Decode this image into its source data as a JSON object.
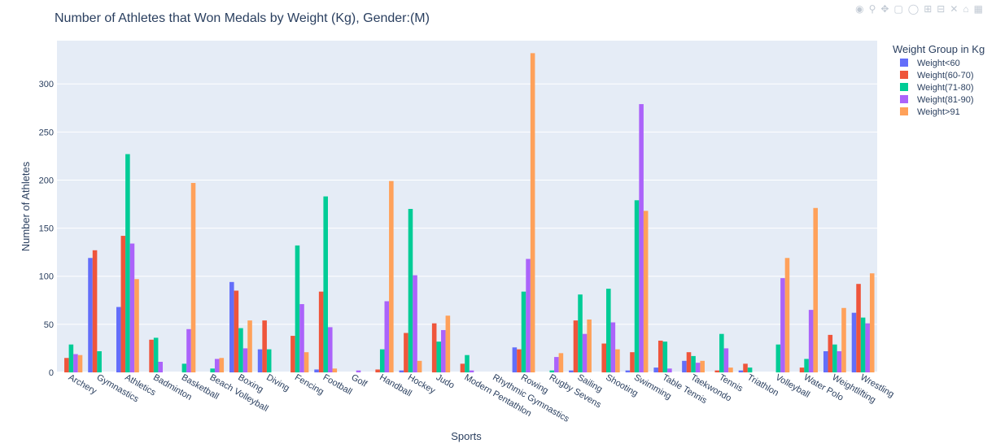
{
  "chart_data": {
    "type": "bar",
    "title": "Number of Athletes that Won Medals by Weight (Kg), Gender:(M)",
    "xlabel": "Sports",
    "ylabel": "Number of Athletes",
    "ylim": [
      0,
      345
    ],
    "yticks": [
      0,
      50,
      100,
      150,
      200,
      250,
      300
    ],
    "grid": true,
    "legend_title": "Weight Group in Kg",
    "legend_position": "right",
    "categories": [
      "Archery",
      "Gymnastics",
      "Athletics",
      "Badminton",
      "Basketball",
      "Beach Volleyball",
      "Boxing",
      "Diving",
      "Fencing",
      "Football",
      "Golf",
      "Handball",
      "Hockey",
      "Judo",
      "Modern Pentathlon",
      "Rhythmic Gymnastics",
      "Rowing",
      "Rugby Sevens",
      "Sailing",
      "Shooting",
      "Swimming",
      "Table Tennis",
      "Taekwondo",
      "Tennis",
      "Triathlon",
      "Volleyball",
      "Water Polo",
      "Weightlifting",
      "Wrestling"
    ],
    "series": [
      {
        "name": "Weight<60",
        "color": "#636efa",
        "values": [
          0,
          119,
          68,
          0,
          0,
          0,
          94,
          24,
          0,
          3,
          0,
          0,
          2,
          0,
          0,
          0,
          26,
          0,
          2,
          0,
          2,
          5,
          12,
          0,
          2,
          0,
          0,
          22,
          62
        ]
      },
      {
        "name": "Weight(60-70)",
        "color": "#ef553b",
        "values": [
          15,
          127,
          142,
          34,
          0,
          0,
          85,
          54,
          38,
          84,
          0,
          3,
          41,
          51,
          9,
          0,
          24,
          0,
          54,
          30,
          21,
          33,
          21,
          2,
          9,
          0,
          5,
          39,
          92
        ]
      },
      {
        "name": "Weight(71-80)",
        "color": "#00cc96",
        "values": [
          29,
          22,
          227,
          36,
          9,
          4,
          46,
          24,
          132,
          183,
          0,
          24,
          170,
          32,
          18,
          0,
          84,
          2,
          81,
          87,
          179,
          32,
          17,
          40,
          5,
          29,
          14,
          29,
          57
        ]
      },
      {
        "name": "Weight(81-90)",
        "color": "#ab63fa",
        "values": [
          19,
          0,
          134,
          11,
          45,
          14,
          25,
          0,
          71,
          47,
          2,
          74,
          101,
          44,
          2,
          0,
          118,
          16,
          40,
          52,
          279,
          4,
          10,
          25,
          0,
          98,
          65,
          22,
          51
        ]
      },
      {
        "name": "Weight>91",
        "color": "#ffa15a",
        "values": [
          18,
          0,
          97,
          0,
          197,
          15,
          54,
          0,
          21,
          4,
          0,
          199,
          12,
          59,
          0,
          0,
          332,
          20,
          55,
          24,
          168,
          0,
          12,
          5,
          0,
          119,
          171,
          67,
          103
        ]
      }
    ]
  },
  "modebar": {
    "icons": [
      "camera-icon",
      "zoom-icon",
      "pan-icon",
      "box-select-icon",
      "lasso-icon",
      "zoom-in-icon",
      "zoom-out-icon",
      "autoscale-icon",
      "reset-axes-icon",
      "plotly-logo-icon"
    ]
  }
}
